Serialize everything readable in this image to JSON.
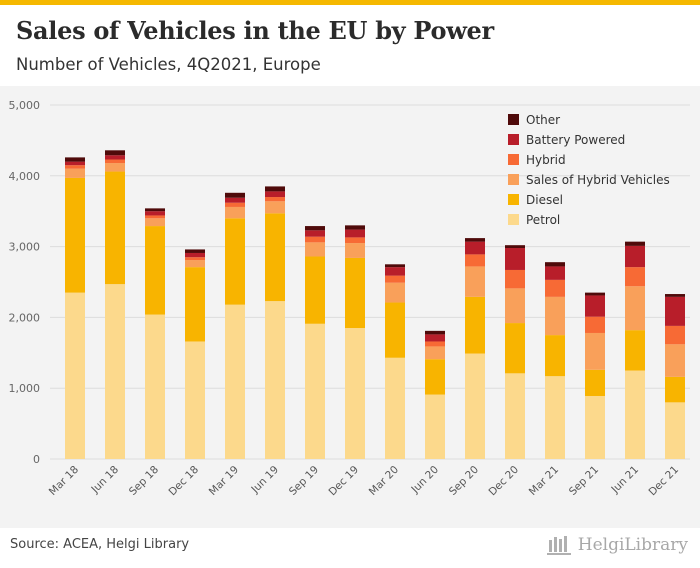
{
  "header": {
    "title": "Sales of Vehicles in the EU by Power",
    "subtitle": "Number of Vehicles, 4Q2021, Europe"
  },
  "footer": {
    "source": "Source: ACEA, Helgi Library",
    "brand": "HelgiLibrary"
  },
  "chart_data": {
    "type": "bar",
    "stacked": true,
    "categories": [
      "Mar 18",
      "Jun 18",
      "Sep 18",
      "Dec 18",
      "Mar 19",
      "Jun 19",
      "Sep 19",
      "Dec 19",
      "Mar 20",
      "Jun 20",
      "Sep 20",
      "Dec 20",
      "Mar 21",
      "Sep 21",
      "Jun 21",
      "Dec 21"
    ],
    "ylim": [
      0,
      5000
    ],
    "yticks": [
      0,
      1000,
      2000,
      3000,
      4000,
      5000
    ],
    "ytick_labels": [
      "0",
      "1,000",
      "2,000",
      "3,000",
      "4,000",
      "5,000"
    ],
    "grid": true,
    "legend_position": "top-right",
    "series": [
      {
        "name": "Petrol",
        "color": "#fcd98c",
        "values": [
          2350,
          2470,
          2040,
          1660,
          2180,
          2230,
          1910,
          1850,
          1430,
          910,
          1490,
          1210,
          1170,
          890,
          1250,
          800
        ]
      },
      {
        "name": "Diesel",
        "color": "#f8b400",
        "values": [
          1620,
          1590,
          1250,
          1050,
          1220,
          1240,
          950,
          990,
          780,
          500,
          800,
          710,
          580,
          370,
          570,
          360
        ]
      },
      {
        "name": "Sales of Hybrid Vehicles",
        "color": "#f9a05a",
        "values": [
          130,
          120,
          110,
          100,
          160,
          170,
          200,
          210,
          280,
          180,
          430,
          490,
          540,
          520,
          620,
          460
        ]
      },
      {
        "name": "Hybrid",
        "color": "#f76a35",
        "values": [
          50,
          50,
          40,
          40,
          60,
          60,
          80,
          80,
          100,
          70,
          170,
          260,
          240,
          230,
          270,
          260
        ]
      },
      {
        "name": "Battery Powered",
        "color": "#b81e2a",
        "values": [
          50,
          60,
          60,
          60,
          70,
          80,
          90,
          110,
          120,
          100,
          180,
          310,
          190,
          300,
          300,
          410
        ]
      },
      {
        "name": "Other",
        "color": "#4f0a0a",
        "values": [
          60,
          70,
          40,
          50,
          70,
          70,
          60,
          60,
          40,
          50,
          50,
          40,
          60,
          40,
          60,
          40
        ]
      }
    ]
  }
}
